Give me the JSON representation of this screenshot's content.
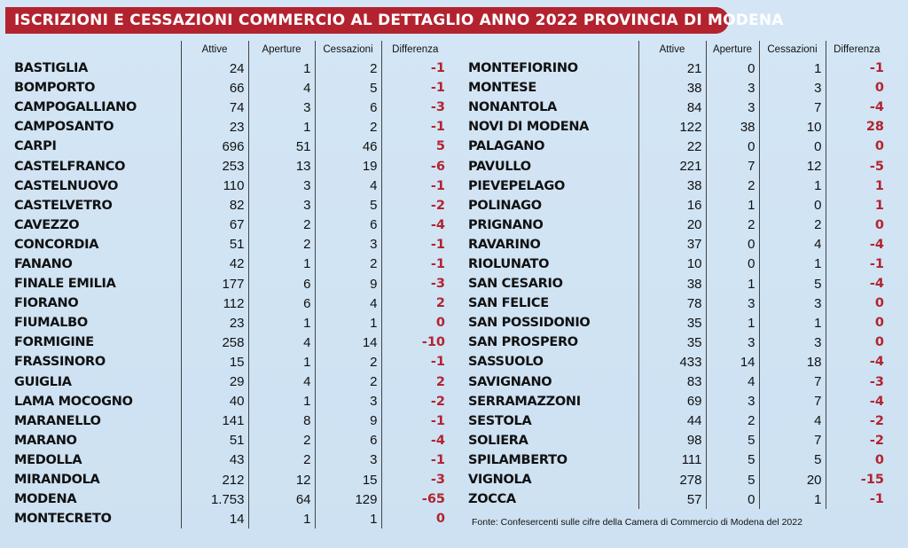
{
  "title": "ISCRIZIONI E CESSAZIONI COMMERCIO AL DETTAGLIO ANNO 2022 PROVINCIA DI MODENA",
  "headers": {
    "attive": "Attive",
    "aperture": "Aperture",
    "cessazioni": "Cessazioni",
    "differenza": "Differenza"
  },
  "left_rows": [
    {
      "name": "BASTIGLIA",
      "attive": "24",
      "aperture": "1",
      "cessazioni": "2",
      "differenza": "-1"
    },
    {
      "name": "BOMPORTO",
      "attive": "66",
      "aperture": "4",
      "cessazioni": "5",
      "differenza": "-1"
    },
    {
      "name": "CAMPOGALLIANO",
      "attive": "74",
      "aperture": "3",
      "cessazioni": "6",
      "differenza": "-3"
    },
    {
      "name": "CAMPOSANTO",
      "attive": "23",
      "aperture": "1",
      "cessazioni": "2",
      "differenza": "-1"
    },
    {
      "name": "CARPI",
      "attive": "696",
      "aperture": "51",
      "cessazioni": "46",
      "differenza": "5"
    },
    {
      "name": "CASTELFRANCO",
      "attive": "253",
      "aperture": "13",
      "cessazioni": "19",
      "differenza": "-6"
    },
    {
      "name": "CASTELNUOVO",
      "attive": "110",
      "aperture": "3",
      "cessazioni": "4",
      "differenza": "-1"
    },
    {
      "name": "CASTELVETRO",
      "attive": "82",
      "aperture": "3",
      "cessazioni": "5",
      "differenza": "-2"
    },
    {
      "name": "CAVEZZO",
      "attive": "67",
      "aperture": "2",
      "cessazioni": "6",
      "differenza": "-4"
    },
    {
      "name": "CONCORDIA",
      "attive": "51",
      "aperture": "2",
      "cessazioni": "3",
      "differenza": "-1"
    },
    {
      "name": "FANANO",
      "attive": "42",
      "aperture": "1",
      "cessazioni": "2",
      "differenza": "-1"
    },
    {
      "name": "FINALE EMILIA",
      "attive": "177",
      "aperture": "6",
      "cessazioni": "9",
      "differenza": "-3"
    },
    {
      "name": "FIORANO",
      "attive": "112",
      "aperture": "6",
      "cessazioni": "4",
      "differenza": "2"
    },
    {
      "name": "FIUMALBO",
      "attive": "23",
      "aperture": "1",
      "cessazioni": "1",
      "differenza": "0"
    },
    {
      "name": "FORMIGINE",
      "attive": "258",
      "aperture": "4",
      "cessazioni": "14",
      "differenza": "-10"
    },
    {
      "name": "FRASSINORO",
      "attive": "15",
      "aperture": "1",
      "cessazioni": "2",
      "differenza": "-1"
    },
    {
      "name": "GUIGLIA",
      "attive": "29",
      "aperture": "4",
      "cessazioni": "2",
      "differenza": "2"
    },
    {
      "name": "LAMA MOCOGNO",
      "attive": "40",
      "aperture": "1",
      "cessazioni": "3",
      "differenza": "-2"
    },
    {
      "name": "MARANELLO",
      "attive": "141",
      "aperture": "8",
      "cessazioni": "9",
      "differenza": "-1"
    },
    {
      "name": "MARANO",
      "attive": "51",
      "aperture": "2",
      "cessazioni": "6",
      "differenza": "-4"
    },
    {
      "name": "MEDOLLA",
      "attive": "43",
      "aperture": "2",
      "cessazioni": "3",
      "differenza": "-1"
    },
    {
      "name": "MIRANDOLA",
      "attive": "212",
      "aperture": "12",
      "cessazioni": "15",
      "differenza": "-3"
    },
    {
      "name": "MODENA",
      "attive": "1.753",
      "aperture": "64",
      "cessazioni": "129",
      "differenza": "-65"
    },
    {
      "name": "MONTECRETO",
      "attive": "14",
      "aperture": "1",
      "cessazioni": "1",
      "differenza": "0"
    }
  ],
  "right_rows": [
    {
      "name": "MONTEFIORINO",
      "attive": "21",
      "aperture": "0",
      "cessazioni": "1",
      "differenza": "-1"
    },
    {
      "name": "MONTESE",
      "attive": "38",
      "aperture": "3",
      "cessazioni": "3",
      "differenza": "0"
    },
    {
      "name": "NONANTOLA",
      "attive": "84",
      "aperture": "3",
      "cessazioni": "7",
      "differenza": "-4"
    },
    {
      "name": "NOVI DI MODENA",
      "attive": "122",
      "aperture": "38",
      "cessazioni": "10",
      "differenza": "28"
    },
    {
      "name": "PALAGANO",
      "attive": "22",
      "aperture": "0",
      "cessazioni": "0",
      "differenza": "0"
    },
    {
      "name": "PAVULLO",
      "attive": "221",
      "aperture": "7",
      "cessazioni": "12",
      "differenza": "-5"
    },
    {
      "name": "PIEVEPELAGO",
      "attive": "38",
      "aperture": "2",
      "cessazioni": "1",
      "differenza": "1"
    },
    {
      "name": "POLINAGO",
      "attive": "16",
      "aperture": "1",
      "cessazioni": "0",
      "differenza": "1"
    },
    {
      "name": "PRIGNANO",
      "attive": "20",
      "aperture": "2",
      "cessazioni": "2",
      "differenza": "0"
    },
    {
      "name": "RAVARINO",
      "attive": "37",
      "aperture": "0",
      "cessazioni": "4",
      "differenza": "-4"
    },
    {
      "name": "RIOLUNATO",
      "attive": "10",
      "aperture": "0",
      "cessazioni": "1",
      "differenza": "-1"
    },
    {
      "name": "SAN CESARIO",
      "attive": "38",
      "aperture": "1",
      "cessazioni": "5",
      "differenza": "-4"
    },
    {
      "name": "SAN FELICE",
      "attive": "78",
      "aperture": "3",
      "cessazioni": "3",
      "differenza": "0"
    },
    {
      "name": "SAN POSSIDONIO",
      "attive": "35",
      "aperture": "1",
      "cessazioni": "1",
      "differenza": "0"
    },
    {
      "name": "SAN PROSPERO",
      "attive": "35",
      "aperture": "3",
      "cessazioni": "3",
      "differenza": "0"
    },
    {
      "name": "SASSUOLO",
      "attive": "433",
      "aperture": "14",
      "cessazioni": "18",
      "differenza": "-4"
    },
    {
      "name": "SAVIGNANO",
      "attive": "83",
      "aperture": "4",
      "cessazioni": "7",
      "differenza": "-3"
    },
    {
      "name": "SERRAMAZZONI",
      "attive": "69",
      "aperture": "3",
      "cessazioni": "7",
      "differenza": "-4"
    },
    {
      "name": "SESTOLA",
      "attive": "44",
      "aperture": "2",
      "cessazioni": "4",
      "differenza": "-2"
    },
    {
      "name": "SOLIERA",
      "attive": "98",
      "aperture": "5",
      "cessazioni": "7",
      "differenza": "-2"
    },
    {
      "name": "SPILAMBERTO",
      "attive": "111",
      "aperture": "5",
      "cessazioni": "5",
      "differenza": "0"
    },
    {
      "name": "VIGNOLA",
      "attive": "278",
      "aperture": "5",
      "cessazioni": "20",
      "differenza": "-15"
    },
    {
      "name": "ZOCCA",
      "attive": "57",
      "aperture": "0",
      "cessazioni": "1",
      "differenza": "-1"
    }
  ],
  "source": "Fonte: Confesercenti sulle cifre della Camera di Commercio di Modena del 2022",
  "colors": {
    "accent": "#b3232f",
    "background": "#cfe3f3"
  }
}
